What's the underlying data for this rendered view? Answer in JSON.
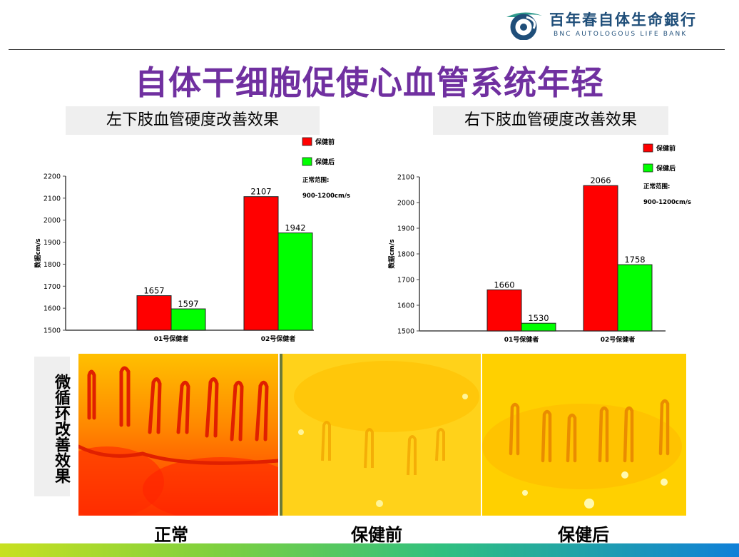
{
  "colors": {
    "title": "#7030a0",
    "before": "#ff0000",
    "after": "#00ff00",
    "brand": "#1f4e79",
    "brand_accent": "#2e9a8c"
  },
  "header": {
    "logo_icon": "bnc-logo-icon",
    "brand_cn": "百年春自体生命銀行",
    "brand_en": "BNC AUTOLOGOUS LIFE BANK"
  },
  "title": "自体干细胞促使心血管系统年轻",
  "chart_data": [
    {
      "type": "bar",
      "title": "左下肢血管硬度改善效果",
      "ylabel": "数据cm/s",
      "ylim": [
        1500,
        2200
      ],
      "yticks": [
        1500,
        1600,
        1700,
        1800,
        1900,
        2000,
        2100,
        2200
      ],
      "categories": [
        "01号保健者",
        "02号保健者"
      ],
      "series": [
        {
          "name": "保健前",
          "values": [
            1657,
            2107
          ]
        },
        {
          "name": "保健后",
          "values": [
            1597,
            1942
          ]
        }
      ],
      "legend_note": [
        "正常范围:",
        "900-1200cm/s"
      ],
      "legend_position": "top-right",
      "grid": false
    },
    {
      "type": "bar",
      "title": "右下肢血管硬度改善效果",
      "ylabel": "数据cm/s",
      "ylim": [
        1500,
        2100
      ],
      "yticks": [
        1500,
        1600,
        1700,
        1800,
        1900,
        2000,
        2100
      ],
      "categories": [
        "01号保健者",
        "02号保健者"
      ],
      "series": [
        {
          "name": "保健前",
          "values": [
            1660,
            2066
          ]
        },
        {
          "name": "保健后",
          "values": [
            1530,
            1758
          ]
        }
      ],
      "legend_note": [
        "正常范围:",
        "900-1200cm/s"
      ],
      "legend_position": "top-right",
      "grid": false
    }
  ],
  "microcirculation": {
    "label": "微循环改善效果",
    "images": [
      {
        "caption": "正常",
        "image": "capillary-micrograph-normal"
      },
      {
        "caption": "保健前",
        "image": "capillary-micrograph-before"
      },
      {
        "caption": "保健后",
        "image": "capillary-micrograph-after"
      }
    ]
  }
}
